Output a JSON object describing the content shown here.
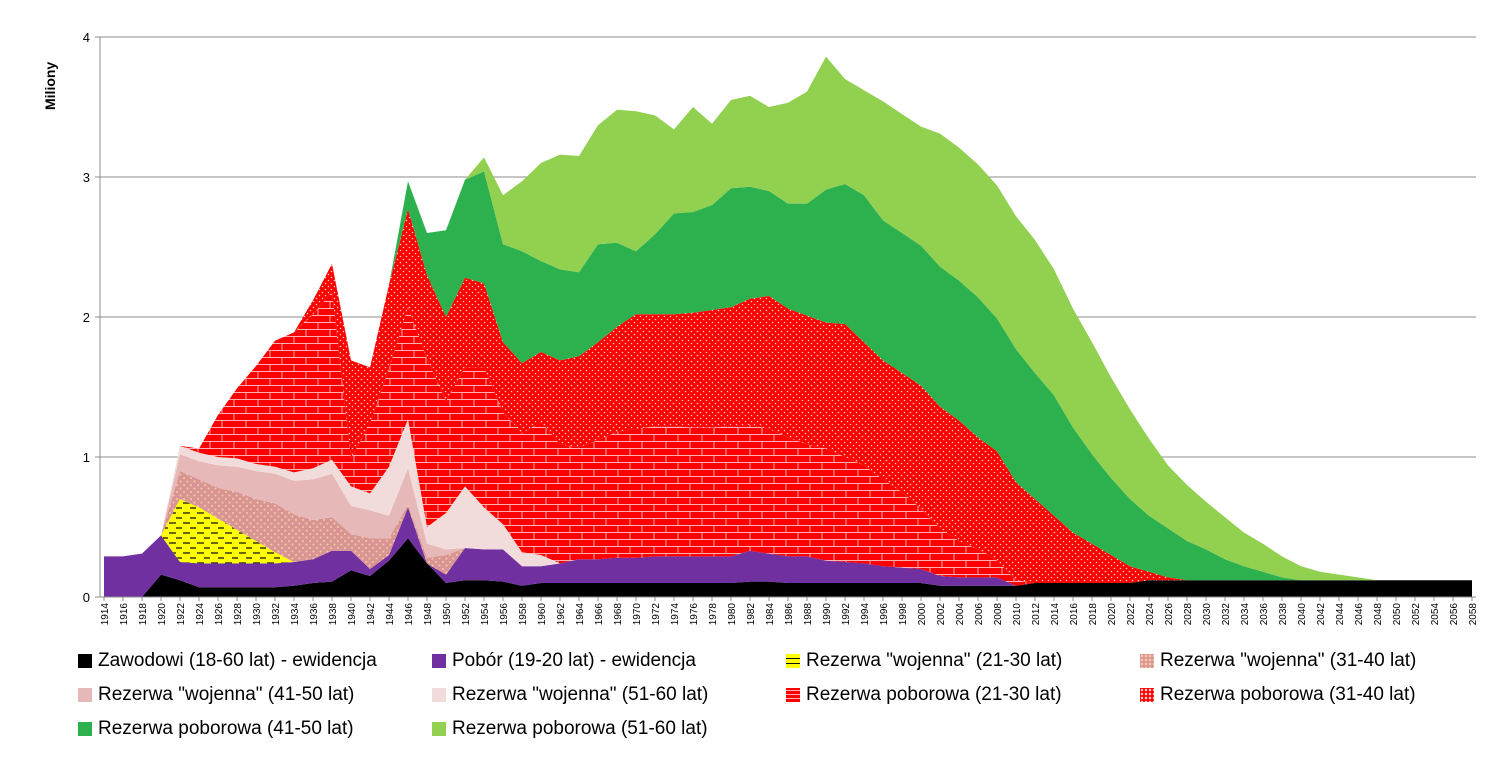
{
  "chart_data": {
    "type": "area",
    "stacked": true,
    "title": "",
    "xlabel": "",
    "ylabel": "Miliony",
    "ylim": [
      0,
      4
    ],
    "yticks": [
      "0",
      "1",
      "2",
      "3",
      "4"
    ],
    "grid": true,
    "legend_position": "bottom",
    "x": [
      "1914",
      "1916",
      "1918",
      "1920",
      "1922",
      "1924",
      "1926",
      "1928",
      "1930",
      "1932",
      "1934",
      "1936",
      "1938",
      "1940",
      "1942",
      "1944",
      "1946",
      "1948",
      "1950",
      "1952",
      "1954",
      "1956",
      "1958",
      "1960",
      "1962",
      "1964",
      "1966",
      "1968",
      "1970",
      "1972",
      "1974",
      "1976",
      "1978",
      "1980",
      "1982",
      "1984",
      "1986",
      "1988",
      "1990",
      "1992",
      "1994",
      "1996",
      "1998",
      "2000",
      "2002",
      "2004",
      "2006",
      "2008",
      "2010",
      "2012",
      "2014",
      "2016",
      "2018",
      "2020",
      "2022",
      "2024",
      "2026",
      "2028",
      "2030",
      "2032",
      "2034",
      "2036",
      "2038",
      "2040",
      "2042",
      "2044",
      "2046",
      "2048",
      "2050",
      "2052",
      "2054",
      "2056",
      "2058"
    ],
    "series": [
      {
        "name": "Zawodowi (18-60 lat) - ewidencja",
        "color": "#000000",
        "pattern": "solid",
        "values": [
          0,
          0,
          0,
          0.16,
          0.12,
          0.07,
          0.07,
          0.07,
          0.07,
          0.07,
          0.08,
          0.1,
          0.11,
          0.19,
          0.15,
          0.26,
          0.42,
          0.24,
          0.1,
          0.12,
          0.12,
          0.11,
          0.08,
          0.1,
          0.1,
          0.1,
          0.1,
          0.1,
          0.1,
          0.1,
          0.1,
          0.1,
          0.1,
          0.1,
          0.11,
          0.11,
          0.1,
          0.1,
          0.1,
          0.1,
          0.1,
          0.1,
          0.1,
          0.1,
          0.08,
          0.08,
          0.08,
          0.08,
          0.08,
          0.1,
          0.1,
          0.1,
          0.1,
          0.1,
          0.1,
          0.12,
          0.12,
          0.12,
          0.12,
          0.12,
          0.12,
          0.12,
          0.12,
          0.12,
          0.12,
          0.12,
          0.12,
          0.12,
          0.12,
          0.12,
          0.12,
          0.12,
          0.12
        ]
      },
      {
        "name": "Pobór (19-20 lat) - ewidencja",
        "color": "#7030a0",
        "pattern": "solid",
        "values": [
          0.29,
          0.29,
          0.31,
          0.28,
          0.13,
          0.17,
          0.17,
          0.17,
          0.17,
          0.17,
          0.17,
          0.17,
          0.22,
          0.14,
          0.05,
          0.04,
          0.22,
          0,
          0.06,
          0.23,
          0.22,
          0.23,
          0.14,
          0.12,
          0.14,
          0.17,
          0.17,
          0.18,
          0.18,
          0.19,
          0.19,
          0.19,
          0.19,
          0.19,
          0.22,
          0.2,
          0.19,
          0.19,
          0.16,
          0.15,
          0.14,
          0.12,
          0.11,
          0.1,
          0.07,
          0.06,
          0.06,
          0.06,
          0,
          0,
          0,
          0,
          0,
          0,
          0,
          0,
          0,
          0,
          0,
          0,
          0,
          0,
          0,
          0,
          0,
          0,
          0,
          0,
          0,
          0,
          0,
          0,
          0
        ]
      },
      {
        "name": "Rezerwa \"wojenna\" (21-30 lat)",
        "color": "#ffff00",
        "pattern": "dashes",
        "values": [
          0,
          0,
          0,
          0,
          0.45,
          0.4,
          0.32,
          0.24,
          0.16,
          0.08,
          0,
          0,
          0,
          0,
          0,
          0,
          0,
          0,
          0,
          0,
          0,
          0,
          0,
          0,
          0,
          0,
          0,
          0,
          0,
          0,
          0,
          0,
          0,
          0,
          0,
          0,
          0,
          0,
          0,
          0,
          0,
          0,
          0,
          0,
          0,
          0,
          0,
          0,
          0,
          0,
          0,
          0,
          0,
          0,
          0,
          0,
          0,
          0,
          0,
          0,
          0,
          0,
          0,
          0,
          0,
          0,
          0,
          0,
          0,
          0,
          0,
          0,
          0
        ]
      },
      {
        "name": "Rezerwa \"wojenna\" (31-40 lat)",
        "color": "#d99594",
        "pattern": "dots",
        "values": [
          0,
          0,
          0,
          0,
          0.2,
          0.2,
          0.22,
          0.27,
          0.3,
          0.35,
          0.34,
          0.28,
          0.24,
          0.12,
          0.22,
          0.12,
          0.02,
          0.04,
          0.14,
          0,
          0,
          0,
          0,
          0,
          0,
          0,
          0,
          0,
          0,
          0,
          0,
          0,
          0,
          0,
          0,
          0,
          0,
          0,
          0,
          0,
          0,
          0,
          0,
          0,
          0,
          0,
          0,
          0,
          0,
          0,
          0,
          0,
          0,
          0,
          0,
          0,
          0,
          0,
          0,
          0,
          0,
          0,
          0,
          0,
          0,
          0,
          0,
          0,
          0,
          0,
          0,
          0,
          0
        ]
      },
      {
        "name": "Rezerwa \"wojenna\" (41-50 lat)",
        "color": "#e6b8b7",
        "pattern": "solid",
        "values": [
          0,
          0,
          0,
          0,
          0.12,
          0.13,
          0.16,
          0.18,
          0.2,
          0.21,
          0.24,
          0.29,
          0.31,
          0.2,
          0.2,
          0.16,
          0.26,
          0.1,
          0.04,
          0,
          0,
          0,
          0,
          0,
          0,
          0,
          0,
          0,
          0,
          0,
          0,
          0,
          0,
          0,
          0,
          0,
          0,
          0,
          0,
          0,
          0,
          0,
          0,
          0,
          0,
          0,
          0,
          0,
          0,
          0,
          0,
          0,
          0,
          0,
          0,
          0,
          0,
          0,
          0,
          0,
          0,
          0,
          0,
          0,
          0,
          0,
          0,
          0,
          0,
          0,
          0,
          0,
          0
        ]
      },
      {
        "name": "Rezerwa \"wojenna\" (51-60 lat)",
        "color": "#f2dcdb",
        "pattern": "solid",
        "values": [
          0,
          0,
          0,
          0,
          0.06,
          0.06,
          0.06,
          0.06,
          0.05,
          0.05,
          0.06,
          0.08,
          0.1,
          0.14,
          0.12,
          0.35,
          0.35,
          0.12,
          0.26,
          0.44,
          0.3,
          0.18,
          0.1,
          0.08,
          0,
          0,
          0,
          0,
          0,
          0,
          0,
          0,
          0,
          0,
          0,
          0,
          0,
          0,
          0,
          0,
          0,
          0,
          0,
          0,
          0,
          0,
          0,
          0,
          0,
          0,
          0,
          0,
          0,
          0,
          0,
          0,
          0,
          0,
          0,
          0,
          0,
          0,
          0,
          0,
          0,
          0,
          0,
          0,
          0,
          0,
          0,
          0,
          0
        ]
      },
      {
        "name": "Rezerwa poborowa (21-30 lat)",
        "color": "#ff0000",
        "pattern": "bricks",
        "values": [
          0,
          0,
          0,
          0,
          0,
          0.03,
          0.3,
          0.5,
          0.7,
          0.9,
          1,
          1.1,
          1.2,
          0.2,
          0.5,
          0.7,
          0.8,
          1.2,
          0.8,
          0.85,
          1,
          0.8,
          0.85,
          0.95,
          0.85,
          0.8,
          0.85,
          0.9,
          0.92,
          0.93,
          0.93,
          0.92,
          0.92,
          0.93,
          0.9,
          0.89,
          0.85,
          0.8,
          0.8,
          0.75,
          0.7,
          0.62,
          0.54,
          0.43,
          0.34,
          0.26,
          0.2,
          0.12,
          0.04,
          0,
          0,
          0,
          0,
          0,
          0,
          0,
          0,
          0,
          0,
          0,
          0,
          0,
          0,
          0,
          0,
          0,
          0,
          0,
          0,
          0,
          0,
          0,
          0
        ]
      },
      {
        "name": "Rezerwa poborowa (31-40 lat)",
        "color": "#ff0000",
        "pattern": "dots",
        "values": [
          0,
          0,
          0,
          0,
          0,
          0,
          0,
          0,
          0,
          0,
          0,
          0.1,
          0.2,
          0.7,
          0.4,
          0.6,
          0.7,
          0.6,
          0.6,
          0.64,
          0.6,
          0.5,
          0.5,
          0.5,
          0.6,
          0.65,
          0.7,
          0.75,
          0.82,
          0.8,
          0.8,
          0.82,
          0.84,
          0.85,
          0.9,
          0.95,
          0.92,
          0.92,
          0.9,
          0.95,
          0.88,
          0.85,
          0.85,
          0.88,
          0.87,
          0.86,
          0.8,
          0.78,
          0.7,
          0.6,
          0.48,
          0.36,
          0.28,
          0.2,
          0.12,
          0.06,
          0.02,
          0,
          0,
          0,
          0,
          0,
          0,
          0,
          0,
          0,
          0,
          0,
          0,
          0,
          0,
          0,
          0
        ]
      },
      {
        "name": "Rezerwa poborowa (41-50 lat)",
        "color": "#2db14f",
        "pattern": "solid",
        "values": [
          0,
          0,
          0,
          0,
          0,
          0,
          0,
          0,
          0,
          0,
          0,
          0,
          0,
          0,
          0,
          0,
          0.2,
          0.3,
          0.62,
          0.7,
          0.8,
          0.7,
          0.8,
          0.65,
          0.65,
          0.6,
          0.7,
          0.6,
          0.45,
          0.57,
          0.72,
          0.72,
          0.75,
          0.85,
          0.8,
          0.75,
          0.75,
          0.8,
          0.95,
          1.0,
          1.05,
          1.0,
          1.0,
          1.0,
          1.0,
          1.0,
          1.0,
          0.95,
          0.95,
          0.9,
          0.86,
          0.75,
          0.64,
          0.55,
          0.48,
          0.4,
          0.35,
          0.28,
          0.22,
          0.15,
          0.1,
          0.06,
          0.02,
          0,
          0,
          0,
          0,
          0,
          0,
          0,
          0,
          0,
          0
        ]
      },
      {
        "name": "Rezerwa poborowa (51-60 lat)",
        "color": "#92d050",
        "pattern": "solid",
        "values": [
          0,
          0,
          0,
          0,
          0,
          0,
          0,
          0,
          0,
          0,
          0,
          0,
          0,
          0,
          0,
          0,
          0,
          0,
          0,
          0,
          0.1,
          0.35,
          0.5,
          0.7,
          0.82,
          0.83,
          0.85,
          0.95,
          1.0,
          0.85,
          0.6,
          0.75,
          0.58,
          0.63,
          0.65,
          0.6,
          0.72,
          0.8,
          0.95,
          0.75,
          0.75,
          0.85,
          0.85,
          0.85,
          0.95,
          0.95,
          0.95,
          0.95,
          0.95,
          0.95,
          0.9,
          0.85,
          0.8,
          0.72,
          0.64,
          0.55,
          0.45,
          0.4,
          0.34,
          0.3,
          0.24,
          0.2,
          0.15,
          0.1,
          0.06,
          0.04,
          0.02,
          0,
          0,
          0,
          0,
          0,
          0
        ]
      }
    ]
  }
}
